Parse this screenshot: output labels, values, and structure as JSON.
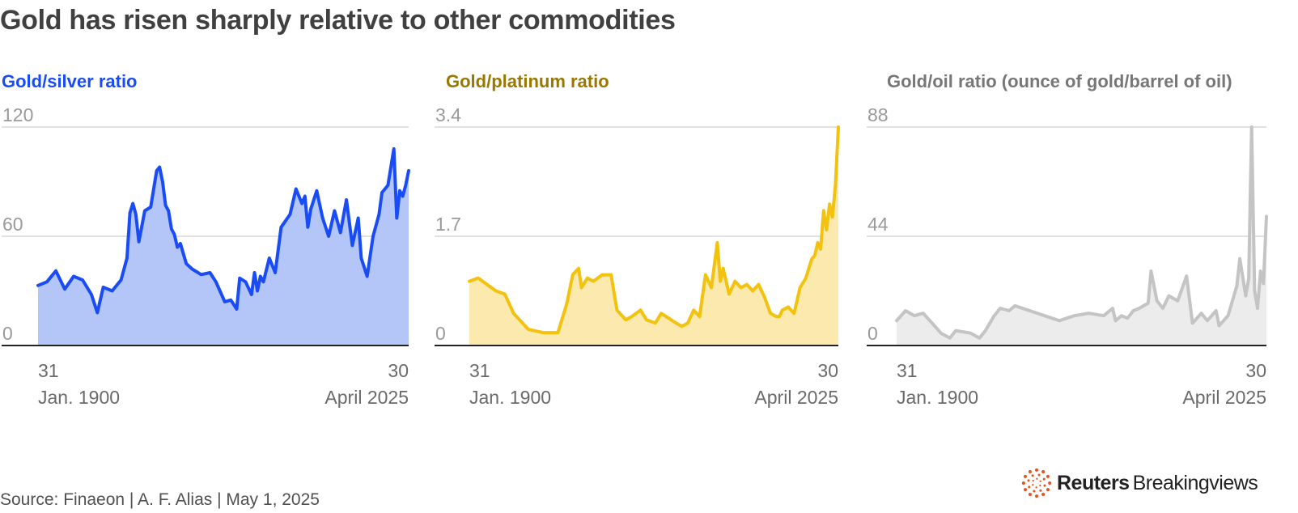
{
  "headline": "Gold has risen sharply relative to other commodities",
  "source": "Source: Finaeon | A. F. Alias | May 1, 2025",
  "brand": {
    "name": "Reuters",
    "sub": "Breakingviews",
    "logo_icon": "reuters-dot-ring-logo",
    "logo_color": "#e8501e"
  },
  "chart_data": [
    {
      "type": "area",
      "title": "Gold/silver ratio",
      "color": "#1a4cf5",
      "fill": "#b3c6f7",
      "ylim": [
        0,
        120
      ],
      "yticks": [
        "0",
        "60",
        "120"
      ],
      "ytick_values": [
        0,
        60,
        120
      ],
      "xlabels": [
        [
          "31",
          "Jan. 1900"
        ],
        [
          "30",
          "April 2025"
        ]
      ],
      "x": [
        1900,
        1903,
        1906,
        1909,
        1912,
        1915,
        1918,
        1920,
        1922,
        1925,
        1928,
        1930,
        1931,
        1932,
        1933,
        1934,
        1936,
        1938,
        1940,
        1941,
        1942,
        1943,
        1944,
        1945,
        1946,
        1947,
        1948,
        1950,
        1952,
        1955,
        1958,
        1960,
        1963,
        1965,
        1967,
        1968,
        1970,
        1972,
        1973,
        1974,
        1975,
        1976,
        1978,
        1980,
        1982,
        1985,
        1987,
        1989,
        1990,
        1991,
        1992,
        1994,
        1996,
        1998,
        2000,
        2002,
        2004,
        2006,
        2008,
        2009,
        2011,
        2013,
        2015,
        2016,
        2018,
        2020,
        2021,
        2022,
        2023,
        2024,
        2025
      ],
      "values": [
        33,
        35,
        41,
        31,
        38,
        36,
        28,
        18,
        32,
        30,
        36,
        48,
        73,
        78,
        72,
        57,
        74,
        76,
        96,
        98,
        90,
        77,
        74,
        64,
        61,
        54,
        56,
        45,
        42,
        39,
        40,
        35,
        24,
        25,
        20,
        37,
        35,
        28,
        40,
        30,
        38,
        35,
        48,
        40,
        65,
        72,
        86,
        78,
        82,
        65,
        75,
        85,
        70,
        60,
        74,
        62,
        80,
        55,
        70,
        48,
        38,
        60,
        72,
        84,
        88,
        108,
        70,
        85,
        82,
        88,
        96
      ]
    },
    {
      "type": "area",
      "title": "Gold/platinum ratio",
      "color": "#f2c20f",
      "fill": "#fbe9ae",
      "ylim": [
        0,
        3.4
      ],
      "yticks": [
        "0",
        "1.7",
        "3.4"
      ],
      "ytick_values": [
        0,
        1.7,
        3.4
      ],
      "xlabels": [
        [
          "31",
          "Jan. 1900"
        ],
        [
          "30",
          "April 2025"
        ]
      ],
      "x": [
        1900,
        1903,
        1906,
        1909,
        1912,
        1915,
        1918,
        1920,
        1925,
        1930,
        1933,
        1935,
        1937,
        1938,
        1940,
        1942,
        1945,
        1948,
        1950,
        1953,
        1955,
        1958,
        1960,
        1963,
        1965,
        1970,
        1972,
        1974,
        1976,
        1978,
        1980,
        1982,
        1984,
        1985,
        1986,
        1988,
        1990,
        1992,
        1994,
        1996,
        1998,
        2000,
        2002,
        2004,
        2005,
        2006,
        2008,
        2010,
        2012,
        2014,
        2015,
        2016,
        2017,
        2018,
        2019,
        2020,
        2021,
        2022,
        2023,
        2024,
        2025
      ],
      "values": [
        1.0,
        1.05,
        0.95,
        0.85,
        0.8,
        0.5,
        0.35,
        0.25,
        0.2,
        0.2,
        0.65,
        1.1,
        1.2,
        0.9,
        1.05,
        1.0,
        1.1,
        1.1,
        0.55,
        0.4,
        0.45,
        0.55,
        0.4,
        0.35,
        0.5,
        0.35,
        0.3,
        0.35,
        0.55,
        0.45,
        1.1,
        0.9,
        1.6,
        1.0,
        1.2,
        0.8,
        1.0,
        0.9,
        0.95,
        0.85,
        0.95,
        0.75,
        0.5,
        0.45,
        0.45,
        0.55,
        0.6,
        0.5,
        0.9,
        1.05,
        1.2,
        1.35,
        1.4,
        1.6,
        1.5,
        2.1,
        1.8,
        2.2,
        2.0,
        2.5,
        3.4
      ]
    },
    {
      "type": "area",
      "title": "Gold/oil ratio (ounce of gold/barrel of oil)",
      "color": "#c4c4c4",
      "fill": "#ececec",
      "ylim": [
        0,
        88
      ],
      "yticks": [
        "0",
        "44",
        "88"
      ],
      "ytick_values": [
        0,
        44,
        88
      ],
      "xlabels": [
        [
          "31",
          "Jan. 1900"
        ],
        [
          "30",
          "April 2025"
        ]
      ],
      "x": [
        1900,
        1903,
        1906,
        1909,
        1912,
        1915,
        1918,
        1920,
        1925,
        1928,
        1930,
        1933,
        1935,
        1938,
        1940,
        1945,
        1950,
        1955,
        1960,
        1965,
        1970,
        1973,
        1974,
        1976,
        1978,
        1980,
        1982,
        1985,
        1986,
        1988,
        1990,
        1992,
        1995,
        1998,
        2000,
        2003,
        2005,
        2008,
        2009,
        2012,
        2015,
        2016,
        2018,
        2019,
        2020,
        2021,
        2022,
        2023,
        2024,
        2025
      ],
      "values": [
        10,
        14,
        12,
        13,
        9,
        5,
        3,
        6,
        5,
        3,
        6,
        12,
        15,
        14,
        16,
        14,
        12,
        10,
        12,
        13,
        12,
        15,
        10,
        12,
        11,
        14,
        15,
        17,
        30,
        18,
        15,
        20,
        18,
        28,
        9,
        13,
        10,
        14,
        8,
        12,
        24,
        35,
        20,
        27,
        88,
        22,
        15,
        30,
        25,
        52
      ]
    }
  ]
}
